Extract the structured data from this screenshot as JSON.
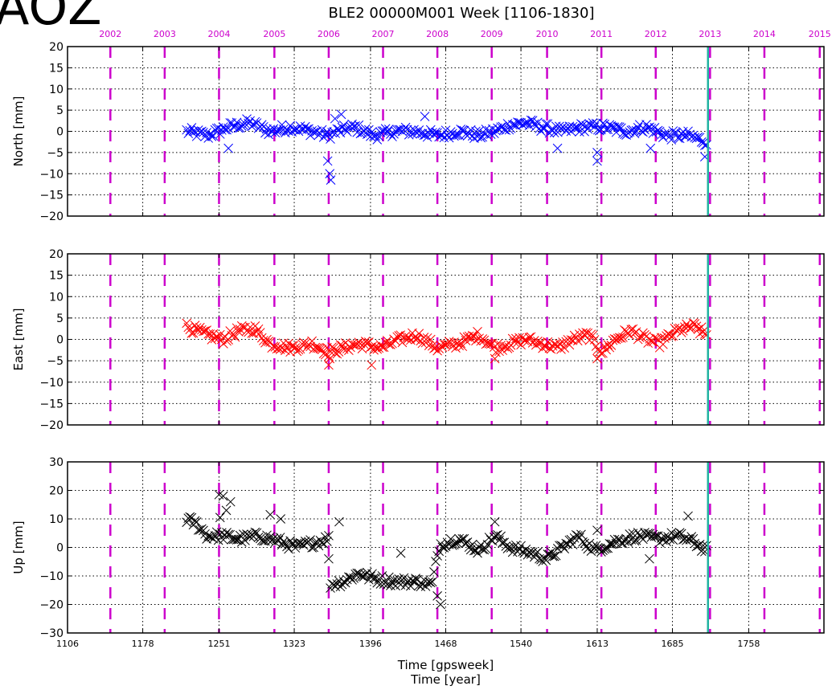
{
  "station_name": "AOZ",
  "chart_data": {
    "type": "scatter",
    "title": "BLE2 00000M001  Week [1106-1830]",
    "xlabel": "Time [gpsweek]",
    "xlabel2": "Time [year]",
    "xlim": [
      1106,
      1830
    ],
    "x_ticks": [
      1106,
      1178,
      1251,
      1323,
      1396,
      1468,
      1540,
      1613,
      1685,
      1758
    ],
    "x_tick_labels": [
      "1106",
      "1178",
      "1251",
      "1323",
      "1396",
      "1468",
      "1540",
      "1613",
      "1685",
      "1758"
    ],
    "year_marks": [
      {
        "label": "2002",
        "week": 1147
      },
      {
        "label": "2003",
        "week": 1199
      },
      {
        "label": "2004",
        "week": 1251
      },
      {
        "label": "2005",
        "week": 1304
      },
      {
        "label": "2006",
        "week": 1356
      },
      {
        "label": "2007",
        "week": 1408
      },
      {
        "label": "2008",
        "week": 1460
      },
      {
        "label": "2009",
        "week": 1512
      },
      {
        "label": "2010",
        "week": 1565
      },
      {
        "label": "2011",
        "week": 1617
      },
      {
        "label": "2012",
        "week": 1669
      },
      {
        "label": "2013",
        "week": 1721
      },
      {
        "label": "2014",
        "week": 1773
      },
      {
        "label": "2015",
        "week": 1826
      }
    ],
    "highlight_week": 1719,
    "grid": true,
    "colors": {
      "year_lines": "#cc00cc",
      "highlight": "#20b2a0",
      "north": "#0000ff",
      "east": "#ff0000",
      "up": "#000000"
    },
    "panels": [
      {
        "ylabel": "North [mm]",
        "ylim": [
          -20,
          20
        ],
        "yticks": [
          20,
          15,
          10,
          5,
          0,
          -5,
          -10,
          -15,
          -20
        ],
        "series": [
          {
            "color": "#0000ff",
            "marker": "x",
            "anchors": [
              [
                1220,
                0
              ],
              [
                1240,
                -1
              ],
              [
                1260,
                1
              ],
              [
                1280,
                2
              ],
              [
                1300,
                0
              ],
              [
                1320,
                1
              ],
              [
                1340,
                0
              ],
              [
                1355,
                -1
              ],
              [
                1365,
                0
              ],
              [
                1380,
                1
              ],
              [
                1400,
                -1
              ],
              [
                1420,
                0
              ],
              [
                1440,
                0
              ],
              [
                1460,
                -1
              ],
              [
                1480,
                0
              ],
              [
                1500,
                -1
              ],
              [
                1515,
                0
              ],
              [
                1530,
                1.5
              ],
              [
                1545,
                2
              ],
              [
                1560,
                1
              ],
              [
                1580,
                0
              ],
              [
                1600,
                1
              ],
              [
                1620,
                1
              ],
              [
                1640,
                0
              ],
              [
                1660,
                1
              ],
              [
                1680,
                -1
              ],
              [
                1700,
                -1
              ],
              [
                1718,
                -2.5
              ]
            ],
            "outliers": [
              [
                1357,
                -10
              ],
              [
                1358,
                -11.5
              ],
              [
                1355,
                -7
              ],
              [
                1362,
                3
              ],
              [
                1368,
                4
              ],
              [
                1260,
                -4
              ],
              [
                1575,
                -4
              ],
              [
                1613,
                -7
              ],
              [
                1613,
                -5
              ],
              [
                1664,
                -4
              ],
              [
                1716,
                -6
              ],
              [
                1448,
                3.5
              ]
            ]
          }
        ]
      },
      {
        "ylabel": "East [mm]",
        "ylim": [
          -20,
          20
        ],
        "yticks": [
          20,
          15,
          10,
          5,
          0,
          -5,
          -10,
          -15,
          -20
        ],
        "series": [
          {
            "color": "#ff0000",
            "marker": "x",
            "anchors": [
              [
                1220,
                3
              ],
              [
                1240,
                1
              ],
              [
                1255,
                0
              ],
              [
                1270,
                2
              ],
              [
                1285,
                2.5
              ],
              [
                1300,
                -1
              ],
              [
                1320,
                -2
              ],
              [
                1340,
                -1
              ],
              [
                1356,
                -3
              ],
              [
                1370,
                -2
              ],
              [
                1385,
                -1
              ],
              [
                1405,
                -2
              ],
              [
                1425,
                0
              ],
              [
                1440,
                1
              ],
              [
                1460,
                -2
              ],
              [
                1480,
                -1
              ],
              [
                1500,
                1
              ],
              [
                1515,
                -2
              ],
              [
                1530,
                -1
              ],
              [
                1545,
                0
              ],
              [
                1560,
                -1
              ],
              [
                1575,
                -2
              ],
              [
                1590,
                0
              ],
              [
                1605,
                1
              ],
              [
                1618,
                -3
              ],
              [
                1630,
                0
              ],
              [
                1645,
                2
              ],
              [
                1660,
                0
              ],
              [
                1672,
                -1
              ],
              [
                1690,
                2
              ],
              [
                1705,
                3
              ],
              [
                1718,
                1
              ]
            ],
            "outliers": [
              [
                1356,
                -6
              ],
              [
                1357,
                -4.5
              ],
              [
                1397,
                -6
              ],
              [
                1613,
                -4.5
              ],
              [
                1515,
                -4.5
              ]
            ]
          }
        ]
      },
      {
        "ylabel": "Up [mm]",
        "ylim": [
          -30,
          30
        ],
        "yticks": [
          30,
          20,
          10,
          0,
          -10,
          -20,
          -30
        ],
        "series": [
          {
            "color": "#000000",
            "marker": "x",
            "anchors": [
              [
                1220,
                10
              ],
              [
                1230,
                8
              ],
              [
                1240,
                4
              ],
              [
                1255,
                4
              ],
              [
                1270,
                3
              ],
              [
                1290,
                4
              ],
              [
                1310,
                2
              ],
              [
                1325,
                0
              ],
              [
                1345,
                2
              ],
              [
                1356,
                3
              ],
              [
                1357,
                -13
              ],
              [
                1370,
                -12
              ],
              [
                1385,
                -9
              ],
              [
                1400,
                -11
              ],
              [
                1420,
                -12
              ],
              [
                1440,
                -12
              ],
              [
                1455,
                -13
              ],
              [
                1462,
                1
              ],
              [
                1480,
                3
              ],
              [
                1500,
                -1
              ],
              [
                1515,
                4
              ],
              [
                1530,
                0
              ],
              [
                1550,
                -2
              ],
              [
                1565,
                -4
              ],
              [
                1580,
                0
              ],
              [
                1595,
                4
              ],
              [
                1610,
                -1
              ],
              [
                1630,
                2
              ],
              [
                1650,
                4
              ],
              [
                1670,
                3
              ],
              [
                1690,
                4
              ],
              [
                1705,
                2
              ],
              [
                1718,
                -1
              ]
            ],
            "outliers": [
              [
                1251,
                18.5
              ],
              [
                1255,
                18
              ],
              [
                1258,
                13
              ],
              [
                1262,
                16
              ],
              [
                1252,
                10.5
              ],
              [
                1300,
                11.5
              ],
              [
                1310,
                10
              ],
              [
                1356,
                -4
              ],
              [
                1366,
                9
              ],
              [
                1425,
                -2
              ],
              [
                1463,
                -20
              ],
              [
                1460,
                -17
              ],
              [
                1515,
                9
              ],
              [
                1613,
                6
              ],
              [
                1663,
                -4
              ],
              [
                1700,
                11
              ]
            ]
          }
        ]
      }
    ]
  }
}
